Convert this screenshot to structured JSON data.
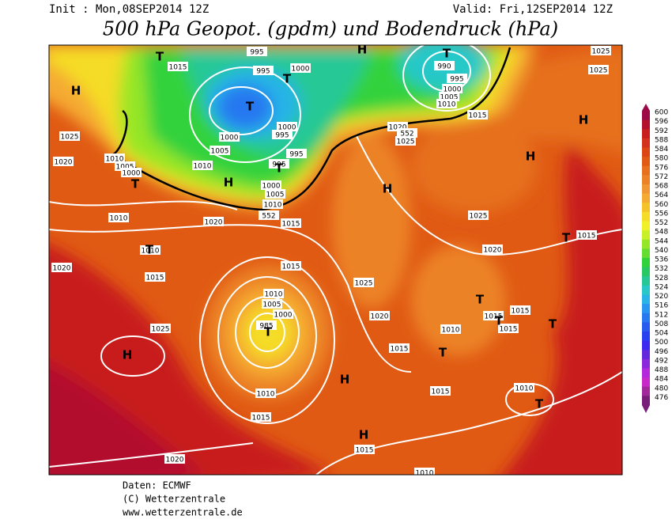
{
  "header": {
    "init": "Init : Mon,08SEP2014 12Z",
    "valid": "Valid: Fri,12SEP2014 12Z",
    "title": "500 hPa Geopot. (gpdm) und Bodendruck (hPa)"
  },
  "map": {
    "pressure_labels": [
      "1015",
      "995",
      "1000",
      "995",
      "1025",
      "1010",
      "1005",
      "1000",
      "1020",
      "1010",
      "1020",
      "1010",
      "1015",
      "1020",
      "1025",
      "1000",
      "1000",
      "995",
      "1005",
      "1010",
      "995",
      "995",
      "1000",
      "1005",
      "1010",
      "552",
      "1015",
      "1015",
      "1010",
      "1005",
      "1000",
      "985",
      "1010",
      "1015",
      "1020",
      "1015",
      "1010",
      "1020",
      "552",
      "1025",
      "1015",
      "995",
      "1000",
      "1005",
      "1010",
      "990",
      "1025",
      "1025",
      "1025",
      "1015",
      "1020",
      "1025",
      "1020",
      "1015",
      "1010",
      "1015",
      "1015",
      "1015",
      "1015",
      "1010"
    ],
    "centers": [
      "H",
      "T",
      "T",
      "T",
      "H",
      "T",
      "H",
      "H",
      "H",
      "H",
      "T",
      "T",
      "T",
      "T",
      "H",
      "H",
      "H",
      "T",
      "T",
      "T",
      "T",
      "T",
      "T"
    ]
  },
  "colorbar": {
    "ticks": [
      600,
      596,
      592,
      588,
      584,
      580,
      576,
      572,
      568,
      564,
      560,
      556,
      552,
      548,
      544,
      540,
      536,
      532,
      528,
      524,
      520,
      516,
      512,
      508,
      504,
      500,
      496,
      492,
      488,
      484,
      480,
      476
    ],
    "colors": [
      "#9b0a46",
      "#b3102e",
      "#c81e1e",
      "#d2321e",
      "#dc4614",
      "#e05a14",
      "#e6701e",
      "#ec8228",
      "#f09632",
      "#f5aa32",
      "#f5c328",
      "#f5dc28",
      "#f0f028",
      "#c8f028",
      "#96e628",
      "#64dc32",
      "#32d23c",
      "#28c864",
      "#28c896",
      "#28c8c8",
      "#28b4e6",
      "#2896f0",
      "#2878f0",
      "#285af0",
      "#2840f0",
      "#3c28f0",
      "#6428dc",
      "#8c28dc",
      "#b428dc",
      "#c828c8",
      "#a0289b",
      "#781e78"
    ]
  },
  "footer": [
    "Daten: ECMWF",
    "(C) Wetterzentrale",
    "www.wetterzentrale.de"
  ]
}
